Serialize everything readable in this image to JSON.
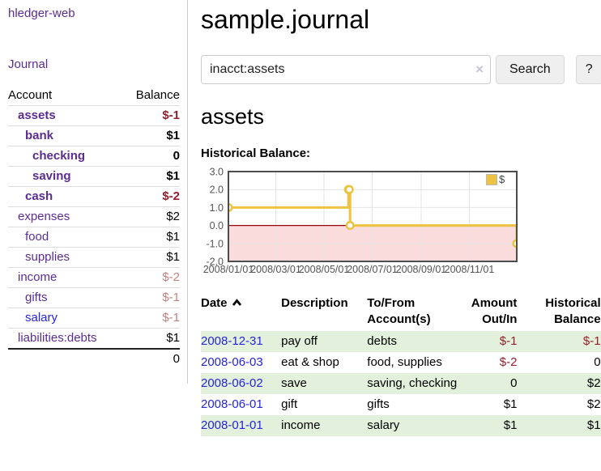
{
  "app": {
    "brand": "hledger-web"
  },
  "sidebar": {
    "nav_journal": "Journal",
    "table": {
      "headers": [
        "Account",
        "Balance"
      ],
      "rows": [
        {
          "account": "assets",
          "balance": "$-1",
          "indent": 0,
          "bold": true
        },
        {
          "account": "bank",
          "balance": "$1",
          "indent": 1,
          "bold": true
        },
        {
          "account": "checking",
          "balance": "0",
          "indent": 2,
          "bold": true
        },
        {
          "account": "saving",
          "balance": "$1",
          "indent": 2,
          "bold": true
        },
        {
          "account": "cash",
          "balance": "$-2",
          "indent": 1,
          "bold": true
        },
        {
          "account": "expenses",
          "balance": "$2",
          "indent": 0,
          "bold": false
        },
        {
          "account": "food",
          "balance": "$1",
          "indent": 1,
          "bold": false
        },
        {
          "account": "supplies",
          "balance": "$1",
          "indent": 1,
          "bold": false
        },
        {
          "account": "income",
          "balance": "$-2",
          "indent": 0,
          "bold": false
        },
        {
          "account": "gifts",
          "balance": "$-1",
          "indent": 1,
          "bold": false
        },
        {
          "account": "salary",
          "balance": "$-1",
          "indent": 1,
          "bold": false,
          "link_color": "blue"
        },
        {
          "account": "liabilities:debts",
          "balance": "$1",
          "indent": 0,
          "bold": false
        }
      ],
      "total": "0"
    }
  },
  "header": {
    "title": "sample.journal"
  },
  "search": {
    "value": "inacct:assets",
    "clear_icon": "×",
    "button_label": "Search",
    "help_label": "?"
  },
  "account_page": {
    "heading": "assets",
    "chart_label": "Historical Balance:"
  },
  "chart_data": {
    "type": "line",
    "steps": true,
    "title": "Historical Balance:",
    "series": [
      {
        "name": "$",
        "color": "#edc240",
        "points": [
          [
            "2008-01-01",
            1
          ],
          [
            "2008-06-01",
            2
          ],
          [
            "2008-06-02",
            2
          ],
          [
            "2008-06-03",
            0
          ],
          [
            "2008-12-31",
            -1
          ]
        ]
      }
    ],
    "xlim": [
      "2008-01-01",
      "2008-12-31"
    ],
    "ylim": [
      -2,
      3
    ],
    "x_ticks": [
      "2008/01/01",
      "2008/03/01",
      "2008/05/01",
      "2008/07/01",
      "2008/09/01",
      "2008/11/01"
    ],
    "y_ticks": [
      3.0,
      2.0,
      1.0,
      0.0,
      -1.0,
      -2.0
    ],
    "grid": true,
    "legend_position": "top-right",
    "legend": [
      "$"
    ],
    "colors": {
      "grid_line": "#e4e4e4",
      "plot_border": "#4d4d4d",
      "tick_label": "#545454",
      "negative_region": "#fadcdc",
      "zero_line": "#990000",
      "point_fill": "#ffffff"
    }
  },
  "register": {
    "headers": {
      "date": "Date",
      "description": "Description",
      "accounts": "To/From Account(s)",
      "amount": "Amount Out/In",
      "balance": "Historical Balance"
    },
    "sort": {
      "column": "date",
      "direction": "asc"
    },
    "rows": [
      {
        "date": "2008-12-31",
        "description": "pay off",
        "accounts": "debts",
        "amount": "$-1",
        "balance": "$-1"
      },
      {
        "date": "2008-06-03",
        "description": "eat & shop",
        "accounts": "food, supplies",
        "amount": "$-2",
        "balance": "0"
      },
      {
        "date": "2008-06-02",
        "description": "save",
        "accounts": "saving, checking",
        "amount": "0",
        "balance": "$2"
      },
      {
        "date": "2008-06-01",
        "description": "gift",
        "accounts": "gifts",
        "amount": "$1",
        "balance": "$2"
      },
      {
        "date": "2008-01-01",
        "description": "income",
        "accounts": "salary",
        "amount": "$1",
        "balance": "$1"
      }
    ]
  },
  "colors": {
    "link_purple": "#5b2d91",
    "link_blue": "#2525d9",
    "negative_strong": "#941f2d",
    "negative_muted": "#c4827f",
    "row_stripe_green": "#e3f0dc",
    "button_bg": "#efefef"
  }
}
